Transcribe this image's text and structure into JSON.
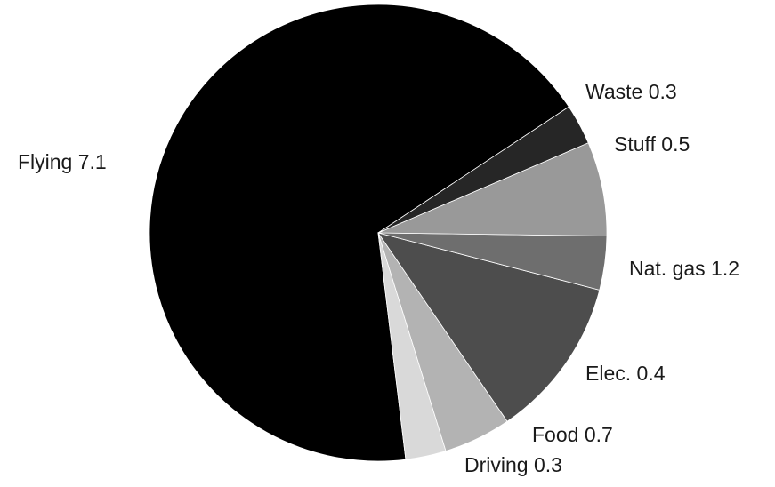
{
  "chart_data": {
    "type": "pie",
    "categories": [
      "Flying",
      "Waste",
      "Stuff",
      "Nat. gas",
      "Elec.",
      "Food",
      "Driving"
    ],
    "values": [
      7.1,
      0.3,
      0.5,
      1.2,
      0.4,
      0.7,
      0.3
    ],
    "labels": [
      "Flying 7.1",
      "Waste 0.3",
      "Stuff 0.5",
      "Nat. gas 1.2",
      "Elec. 0.4",
      "Food 0.7",
      "Driving 0.3"
    ],
    "colors": [
      "#000000",
      "#d9d9d9",
      "#b3b3b3",
      "#4d4d4d",
      "#6e6e6e",
      "#999999",
      "#262626"
    ],
    "title": "",
    "legend": "none"
  }
}
